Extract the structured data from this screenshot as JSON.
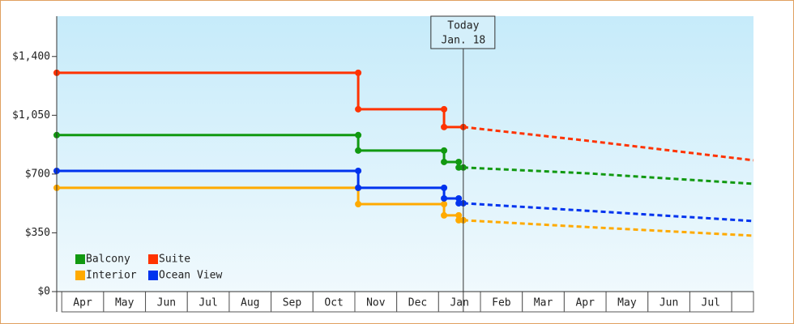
{
  "chart_data": {
    "type": "step-line",
    "ylim": [
      0,
      1640
    ],
    "yticks": [
      {
        "value": 0,
        "label": "$0"
      },
      {
        "value": 350,
        "label": "$350"
      },
      {
        "value": 700,
        "label": "$700"
      },
      {
        "value": 1050,
        "label": "$1,050"
      },
      {
        "value": 1400,
        "label": "$1,400"
      }
    ],
    "xlim": [
      -0.12,
      16.52
    ],
    "xticks": [
      {
        "value": 0.5,
        "label": "Apr"
      },
      {
        "value": 1.5,
        "label": "May"
      },
      {
        "value": 2.5,
        "label": "Jun"
      },
      {
        "value": 3.5,
        "label": "Jul"
      },
      {
        "value": 4.5,
        "label": "Aug"
      },
      {
        "value": 5.5,
        "label": "Sep"
      },
      {
        "value": 6.5,
        "label": "Oct"
      },
      {
        "value": 7.5,
        "label": "Nov"
      },
      {
        "value": 8.5,
        "label": "Dec"
      },
      {
        "value": 9.5,
        "label": "Jan"
      },
      {
        "value": 10.5,
        "label": "Feb"
      },
      {
        "value": 11.5,
        "label": "Mar"
      },
      {
        "value": 12.5,
        "label": "Apr"
      },
      {
        "value": 13.5,
        "label": "May"
      },
      {
        "value": 14.5,
        "label": "Jun"
      },
      {
        "value": 15.5,
        "label": "Jul"
      }
    ],
    "annotation": {
      "label": "Today",
      "date": "Jan. 18",
      "x": 9.59
    },
    "legend": "lower-left",
    "series": [
      {
        "name": "Balcony",
        "color": "#119911",
        "x": [
          -0.12,
          7.08,
          7.08,
          9.13,
          9.13,
          9.48,
          9.48,
          9.59
        ],
        "values": [
          932,
          932,
          840,
          840,
          772,
          772,
          739,
          739
        ],
        "forecast_x": [
          9.59,
          12.5,
          16.52
        ],
        "forecast_values": [
          739,
          705,
          642
        ]
      },
      {
        "name": "Suite",
        "color": "#ff3300",
        "x": [
          -0.12,
          7.08,
          7.08,
          9.13,
          9.13,
          9.59
        ],
        "values": [
          1303,
          1303,
          1086,
          1086,
          980,
          980
        ],
        "forecast_x": [
          9.59,
          12.5,
          16.52
        ],
        "forecast_values": [
          980,
          900,
          782
        ]
      },
      {
        "name": "Interior",
        "color": "#ffaa00",
        "x": [
          -0.12,
          7.08,
          7.08,
          9.13,
          9.13,
          9.48,
          9.48,
          9.59
        ],
        "values": [
          618,
          618,
          521,
          521,
          454,
          454,
          425,
          425
        ],
        "forecast_x": [
          9.59,
          12.5,
          16.52
        ],
        "forecast_values": [
          425,
          385,
          333
        ]
      },
      {
        "name": "Ocean View",
        "color": "#0033ee",
        "x": [
          -0.12,
          7.08,
          7.08,
          9.13,
          9.13,
          9.48,
          9.48,
          9.59
        ],
        "values": [
          719,
          719,
          618,
          618,
          555,
          555,
          526,
          526
        ],
        "forecast_x": [
          9.59,
          12.5,
          16.52
        ],
        "forecast_values": [
          526,
          482,
          420
        ]
      }
    ]
  }
}
